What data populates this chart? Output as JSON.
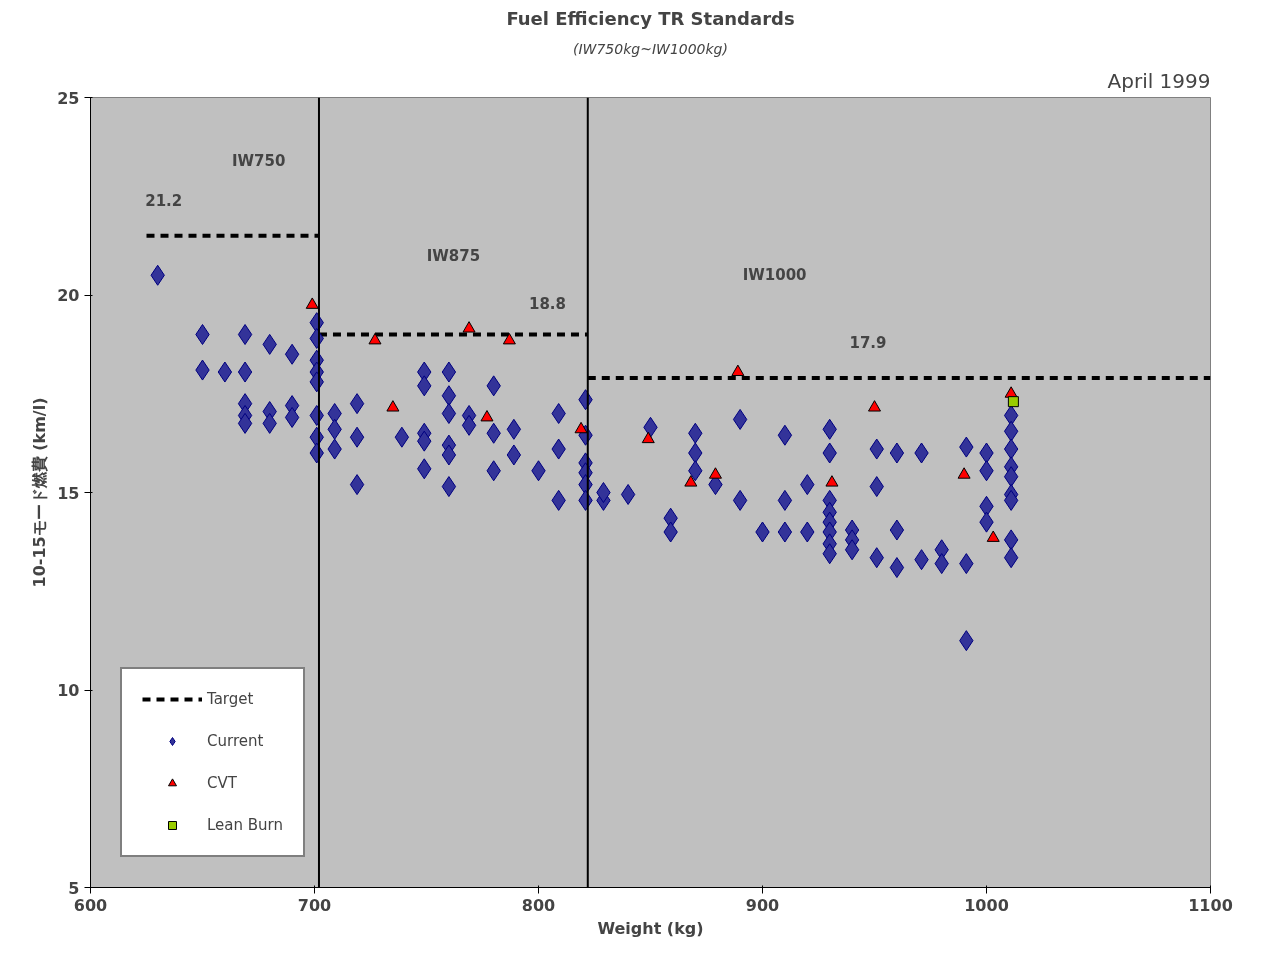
{
  "chart_data": {
    "type": "scatter",
    "title": "Fuel Efficiency TR Standards",
    "subtitle": "(IW750kg~IW1000kg)",
    "xlabel": "Weight (kg)",
    "ylabel": "10-15モード燃費 (km/l)",
    "xlim": [
      600,
      1100
    ],
    "xticks": [
      600,
      700,
      800,
      900,
      1000,
      1100
    ],
    "ylim": [
      5,
      25
    ],
    "yticks": [
      5,
      10,
      15,
      20,
      25
    ],
    "grid": false,
    "legend": "bottom left",
    "ref_lines": [
      {
        "axis": "x",
        "value": 702,
        "color": "#000000"
      },
      {
        "axis": "x",
        "value": 822,
        "color": "#000000"
      }
    ],
    "annotations": [
      "April 1999",
      "IW750",
      "21.2",
      "IW875",
      "18.8",
      "IW1000",
      "17.9"
    ],
    "series": [
      {
        "name": "Target",
        "type": "line",
        "line_style": "dashed",
        "marker": "none",
        "color": "#000000",
        "x": [
          625,
          702,
          null,
          702,
          822,
          null,
          822,
          1100
        ],
        "values": [
          21.5,
          21.5,
          null,
          19.0,
          19.0,
          null,
          17.9,
          17.9
        ]
      },
      {
        "name": "Current",
        "marker": "diamond",
        "color": "#333399",
        "x": [
          630,
          650,
          669,
          680,
          690,
          701,
          650,
          660,
          669,
          701,
          701,
          701,
          701,
          701,
          701,
          701,
          669,
          669,
          669,
          680,
          680,
          690,
          690,
          709,
          709,
          709,
          719,
          719,
          719,
          739,
          749,
          749,
          749,
          749,
          749,
          760,
          760,
          760,
          760,
          760,
          760,
          769,
          769,
          780,
          780,
          780,
          789,
          789,
          800,
          809,
          809,
          809,
          821,
          821,
          821,
          821,
          821,
          821,
          829,
          829,
          840,
          850,
          859,
          859,
          870,
          870,
          870,
          879,
          890,
          890,
          900,
          910,
          910,
          910,
          920,
          920,
          930,
          930,
          930,
          930,
          930,
          930,
          930,
          930,
          940,
          940,
          940,
          951,
          951,
          951,
          960,
          960,
          960,
          971,
          971,
          980,
          980,
          991,
          991,
          991,
          1000,
          1000,
          1000,
          1000,
          1011,
          1011,
          1011,
          1011,
          1011,
          1011,
          1011,
          1011,
          1011
        ],
        "values": [
          20.5,
          19.0,
          19.0,
          18.75,
          18.5,
          19.3,
          18.1,
          18.05,
          18.05,
          18.9,
          18.35,
          18.05,
          17.8,
          16.95,
          16.4,
          16.0,
          17.25,
          16.95,
          16.75,
          17.05,
          16.75,
          17.2,
          16.9,
          17.0,
          16.6,
          16.1,
          17.25,
          16.4,
          15.2,
          16.4,
          18.05,
          17.7,
          16.5,
          16.3,
          15.6,
          18.05,
          17.45,
          17.0,
          16.2,
          15.95,
          15.15,
          16.95,
          16.7,
          17.7,
          16.5,
          15.55,
          16.6,
          15.95,
          15.55,
          17.0,
          16.1,
          14.8,
          17.35,
          16.45,
          15.75,
          15.5,
          15.2,
          14.8,
          14.8,
          15.0,
          14.95,
          16.65,
          14.35,
          14.0,
          16.5,
          16.0,
          15.55,
          15.2,
          16.85,
          14.8,
          14.0,
          16.45,
          14.8,
          14.0,
          15.2,
          14.0,
          16.6,
          16.0,
          14.8,
          14.5,
          14.25,
          14.0,
          13.7,
          13.45,
          14.05,
          13.8,
          13.55,
          16.1,
          15.15,
          13.35,
          16.0,
          14.05,
          13.1,
          16.0,
          13.3,
          13.55,
          13.2,
          16.15,
          13.2,
          11.25,
          16.0,
          15.55,
          14.65,
          14.25,
          16.95,
          16.55,
          16.1,
          15.65,
          15.4,
          14.95,
          14.8,
          13.8,
          13.35
        ]
      },
      {
        "name": "CVT",
        "marker": "triangle",
        "color": "#ff0000",
        "x": [
          699,
          727,
          769,
          787,
          735,
          777,
          819,
          849,
          868,
          879,
          889,
          950,
          931,
          990,
          1003,
          1011
        ],
        "values": [
          19.75,
          18.85,
          19.15,
          18.85,
          17.15,
          16.9,
          16.6,
          16.35,
          15.25,
          15.45,
          18.05,
          17.15,
          15.25,
          15.45,
          13.85,
          17.5
        ]
      },
      {
        "name": "Lean Burn",
        "marker": "square",
        "color": "#99cc00",
        "x": [
          1012
        ],
        "values": [
          17.3
        ]
      }
    ]
  }
}
